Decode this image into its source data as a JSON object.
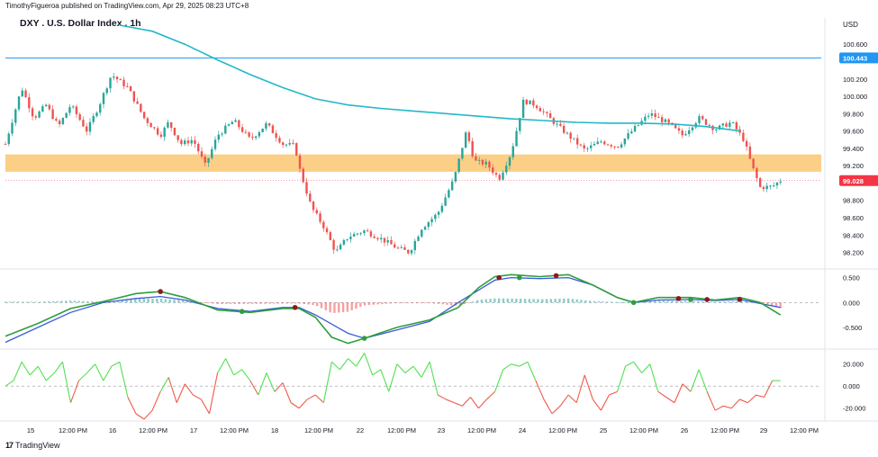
{
  "header": {
    "publisher": "TimothyFigueroa published on TradingView.com, Apr 29, 2025 08:23 UTC+8",
    "symbol_title": "DXY . U.S. Dollar Index . 1h"
  },
  "footer": {
    "brand": "TradingView"
  },
  "colors": {
    "up": "#26a69a",
    "down": "#ef5350",
    "ma": "#22b8c9",
    "zone": "#fbbf5e",
    "hline": "#2196f3",
    "price_label": "#f23645",
    "macd_fast": "#2e9e3e",
    "macd_slow": "#3b5bdb",
    "macd_dark": "#8b1a1a",
    "osc_up": "#52e052",
    "osc_down": "#f05a4a"
  },
  "chart_data": [
    {
      "type": "candlestick",
      "title": "DXY . U.S. Dollar Index . 1h",
      "currency": "USD",
      "y_ticks": [
        "100.600",
        "100.400",
        "100.200",
        "100.000",
        "99.800",
        "99.600",
        "99.400",
        "99.200",
        "99.000",
        "98.800",
        "98.600",
        "98.400",
        "98.200"
      ],
      "ylim": [
        98.04,
        100.82
      ],
      "x_ticks": [
        "15",
        "12:00 PM",
        "16",
        "12:00 PM",
        "17",
        "12:00 PM",
        "18",
        "12:00 PM",
        "22",
        "12:00 PM",
        "23",
        "12:00 PM",
        "24",
        "12:00 PM",
        "25",
        "12:00 PM",
        "26",
        "12:00 PM",
        "29",
        "12:00 PM"
      ],
      "horizontal_line": {
        "value": 100.443,
        "label": "100.443"
      },
      "last_price": {
        "value": 99.028,
        "label": "99.028"
      },
      "support_zone": [
        99.13,
        99.33
      ],
      "sma_path": [
        [
          0.14,
          100.82
        ],
        [
          0.18,
          100.75
        ],
        [
          0.22,
          100.6
        ],
        [
          0.26,
          100.42
        ],
        [
          0.3,
          100.25
        ],
        [
          0.34,
          100.1
        ],
        [
          0.38,
          99.97
        ],
        [
          0.42,
          99.9
        ],
        [
          0.46,
          99.86
        ],
        [
          0.5,
          99.83
        ],
        [
          0.54,
          99.8
        ],
        [
          0.58,
          99.77
        ],
        [
          0.62,
          99.74
        ],
        [
          0.66,
          99.72
        ],
        [
          0.7,
          99.7
        ],
        [
          0.74,
          99.69
        ],
        [
          0.78,
          99.69
        ],
        [
          0.82,
          99.68
        ],
        [
          0.86,
          99.65
        ],
        [
          0.9,
          99.6
        ]
      ],
      "price_path": [
        [
          0.0,
          99.45
        ],
        [
          0.02,
          100.1
        ],
        [
          0.035,
          99.75
        ],
        [
          0.05,
          99.9
        ],
        [
          0.065,
          99.65
        ],
        [
          0.08,
          99.9
        ],
        [
          0.1,
          99.6
        ],
        [
          0.115,
          99.9
        ],
        [
          0.13,
          100.25
        ],
        [
          0.15,
          100.1
        ],
        [
          0.17,
          99.75
        ],
        [
          0.19,
          99.55
        ],
        [
          0.2,
          99.7
        ],
        [
          0.215,
          99.45
        ],
        [
          0.23,
          99.5
        ],
        [
          0.245,
          99.2
        ],
        [
          0.26,
          99.55
        ],
        [
          0.28,
          99.72
        ],
        [
          0.3,
          99.5
        ],
        [
          0.32,
          99.68
        ],
        [
          0.34,
          99.45
        ],
        [
          0.355,
          99.43
        ],
        [
          0.36,
          99.18
        ],
        [
          0.375,
          98.72
        ],
        [
          0.39,
          98.5
        ],
        [
          0.405,
          98.2
        ],
        [
          0.42,
          98.38
        ],
        [
          0.44,
          98.45
        ],
        [
          0.46,
          98.36
        ],
        [
          0.48,
          98.25
        ],
        [
          0.495,
          98.2
        ],
        [
          0.51,
          98.48
        ],
        [
          0.53,
          98.65
        ],
        [
          0.55,
          99.05
        ],
        [
          0.565,
          99.6
        ],
        [
          0.575,
          99.25
        ],
        [
          0.59,
          99.22
        ],
        [
          0.605,
          99.05
        ],
        [
          0.62,
          99.35
        ],
        [
          0.635,
          99.95
        ],
        [
          0.65,
          99.9
        ],
        [
          0.67,
          99.72
        ],
        [
          0.69,
          99.55
        ],
        [
          0.71,
          99.38
        ],
        [
          0.73,
          99.48
        ],
        [
          0.75,
          99.42
        ],
        [
          0.77,
          99.62
        ],
        [
          0.79,
          99.8
        ],
        [
          0.81,
          99.7
        ],
        [
          0.83,
          99.55
        ],
        [
          0.85,
          99.75
        ],
        [
          0.87,
          99.62
        ],
        [
          0.89,
          99.7
        ],
        [
          0.905,
          99.5
        ],
        [
          0.915,
          99.2
        ],
        [
          0.925,
          98.95
        ],
        [
          0.94,
          98.96
        ],
        [
          0.95,
          99.03
        ]
      ]
    },
    {
      "type": "line",
      "indicator": "oscillator-1",
      "y_ticks": [
        "0.500",
        "0.000",
        "-0.500"
      ],
      "ylim": [
        -0.9,
        0.62
      ],
      "fast_path": [
        [
          0.0,
          -0.68
        ],
        [
          0.04,
          -0.42
        ],
        [
          0.08,
          -0.12
        ],
        [
          0.12,
          0.02
        ],
        [
          0.16,
          0.18
        ],
        [
          0.19,
          0.22
        ],
        [
          0.22,
          0.1
        ],
        [
          0.26,
          -0.15
        ],
        [
          0.3,
          -0.2
        ],
        [
          0.34,
          -0.12
        ],
        [
          0.36,
          -0.12
        ],
        [
          0.38,
          -0.3
        ],
        [
          0.4,
          -0.7
        ],
        [
          0.42,
          -0.82
        ],
        [
          0.44,
          -0.72
        ],
        [
          0.48,
          -0.5
        ],
        [
          0.52,
          -0.35
        ],
        [
          0.555,
          -0.1
        ],
        [
          0.58,
          0.3
        ],
        [
          0.6,
          0.52
        ],
        [
          0.62,
          0.56
        ],
        [
          0.655,
          0.52
        ],
        [
          0.69,
          0.56
        ],
        [
          0.72,
          0.35
        ],
        [
          0.75,
          0.1
        ],
        [
          0.77,
          0.0
        ],
        [
          0.8,
          0.1
        ],
        [
          0.84,
          0.1
        ],
        [
          0.87,
          0.05
        ],
        [
          0.9,
          0.1
        ],
        [
          0.925,
          0.0
        ],
        [
          0.95,
          -0.25
        ]
      ],
      "slow_path": [
        [
          0.0,
          -0.8
        ],
        [
          0.04,
          -0.5
        ],
        [
          0.08,
          -0.2
        ],
        [
          0.12,
          0.0
        ],
        [
          0.16,
          0.08
        ],
        [
          0.19,
          0.12
        ],
        [
          0.22,
          0.05
        ],
        [
          0.26,
          -0.12
        ],
        [
          0.3,
          -0.18
        ],
        [
          0.34,
          -0.1
        ],
        [
          0.36,
          -0.1
        ],
        [
          0.38,
          -0.25
        ],
        [
          0.42,
          -0.62
        ],
        [
          0.44,
          -0.72
        ],
        [
          0.48,
          -0.55
        ],
        [
          0.52,
          -0.38
        ],
        [
          0.555,
          0.0
        ],
        [
          0.58,
          0.25
        ],
        [
          0.6,
          0.45
        ],
        [
          0.62,
          0.5
        ],
        [
          0.655,
          0.48
        ],
        [
          0.69,
          0.5
        ],
        [
          0.72,
          0.35
        ],
        [
          0.75,
          0.1
        ],
        [
          0.77,
          0.0
        ],
        [
          0.8,
          0.05
        ],
        [
          0.84,
          0.06
        ],
        [
          0.87,
          0.04
        ],
        [
          0.9,
          0.06
        ],
        [
          0.925,
          -0.02
        ],
        [
          0.95,
          -0.1
        ]
      ]
    },
    {
      "type": "line",
      "indicator": "oscillator-2",
      "y_ticks": [
        "20.000",
        "0.000",
        "-20.000"
      ],
      "ylim": [
        -30,
        32
      ],
      "path": [
        [
          0.0,
          0
        ],
        [
          0.01,
          5
        ],
        [
          0.02,
          22
        ],
        [
          0.03,
          10
        ],
        [
          0.04,
          18
        ],
        [
          0.05,
          5
        ],
        [
          0.06,
          12
        ],
        [
          0.07,
          22
        ],
        [
          0.08,
          -15
        ],
        [
          0.09,
          5
        ],
        [
          0.1,
          12
        ],
        [
          0.11,
          20
        ],
        [
          0.12,
          5
        ],
        [
          0.13,
          18
        ],
        [
          0.14,
          22
        ],
        [
          0.15,
          -10
        ],
        [
          0.16,
          -25
        ],
        [
          0.17,
          -30
        ],
        [
          0.18,
          -22
        ],
        [
          0.19,
          -5
        ],
        [
          0.2,
          8
        ],
        [
          0.21,
          -15
        ],
        [
          0.22,
          2
        ],
        [
          0.23,
          -8
        ],
        [
          0.24,
          -12
        ],
        [
          0.25,
          -25
        ],
        [
          0.26,
          12
        ],
        [
          0.27,
          25
        ],
        [
          0.28,
          10
        ],
        [
          0.29,
          15
        ],
        [
          0.3,
          5
        ],
        [
          0.31,
          -8
        ],
        [
          0.32,
          12
        ],
        [
          0.33,
          -5
        ],
        [
          0.34,
          3
        ],
        [
          0.35,
          -15
        ],
        [
          0.36,
          -20
        ],
        [
          0.37,
          -12
        ],
        [
          0.38,
          -8
        ],
        [
          0.39,
          -15
        ],
        [
          0.4,
          22
        ],
        [
          0.41,
          15
        ],
        [
          0.42,
          25
        ],
        [
          0.43,
          18
        ],
        [
          0.44,
          30
        ],
        [
          0.45,
          10
        ],
        [
          0.46,
          15
        ],
        [
          0.47,
          -5
        ],
        [
          0.48,
          20
        ],
        [
          0.49,
          12
        ],
        [
          0.5,
          18
        ],
        [
          0.51,
          8
        ],
        [
          0.52,
          22
        ],
        [
          0.53,
          -8
        ],
        [
          0.54,
          -12
        ],
        [
          0.55,
          -15
        ],
        [
          0.56,
          -18
        ],
        [
          0.57,
          -10
        ],
        [
          0.58,
          -20
        ],
        [
          0.59,
          -12
        ],
        [
          0.6,
          -5
        ],
        [
          0.61,
          15
        ],
        [
          0.62,
          20
        ],
        [
          0.63,
          18
        ],
        [
          0.64,
          22
        ],
        [
          0.65,
          5
        ],
        [
          0.66,
          -12
        ],
        [
          0.67,
          -25
        ],
        [
          0.68,
          -18
        ],
        [
          0.69,
          -8
        ],
        [
          0.7,
          -15
        ],
        [
          0.71,
          10
        ],
        [
          0.72,
          -12
        ],
        [
          0.73,
          -22
        ],
        [
          0.74,
          -8
        ],
        [
          0.75,
          -5
        ],
        [
          0.76,
          18
        ],
        [
          0.77,
          22
        ],
        [
          0.78,
          12
        ],
        [
          0.79,
          20
        ],
        [
          0.8,
          -5
        ],
        [
          0.81,
          -10
        ],
        [
          0.82,
          -15
        ],
        [
          0.83,
          2
        ],
        [
          0.84,
          -5
        ],
        [
          0.85,
          15
        ],
        [
          0.86,
          -5
        ],
        [
          0.87,
          -22
        ],
        [
          0.88,
          -18
        ],
        [
          0.89,
          -20
        ],
        [
          0.9,
          -12
        ],
        [
          0.91,
          -15
        ],
        [
          0.92,
          -8
        ],
        [
          0.93,
          -10
        ],
        [
          0.94,
          5
        ],
        [
          0.95,
          5
        ]
      ]
    }
  ]
}
